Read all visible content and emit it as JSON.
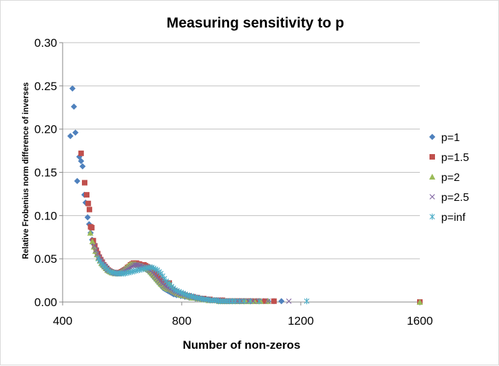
{
  "chart_data": {
    "type": "scatter",
    "title": "Measuring sensitivity to p",
    "xlabel": "Number of non-zeros",
    "ylabel": "Relative Frobenius norm difference of inverses",
    "xlim": [
      400,
      1600
    ],
    "ylim": [
      0,
      0.3
    ],
    "xticks": [
      400,
      800,
      1200,
      1600
    ],
    "xtick_labels": [
      "400",
      "800",
      "1200",
      "1600"
    ],
    "yticks": [
      0,
      0.05,
      0.1,
      0.15,
      0.2,
      0.25,
      0.3
    ],
    "ytick_labels": [
      "0.00",
      "0.05",
      "0.10",
      "0.15",
      "0.20",
      "0.25",
      "0.30"
    ],
    "grid": "horizontal",
    "legend_position": "right",
    "series": [
      {
        "name": "p=1",
        "marker": "diamond",
        "color": "#4f81bd",
        "x": [
          426,
          433,
          438,
          443,
          449,
          456,
          462,
          467,
          473,
          477,
          484,
          489,
          494,
          499,
          504,
          508,
          513,
          518,
          523,
          528,
          533,
          538,
          543,
          548,
          553,
          558,
          563,
          568,
          573,
          578,
          583,
          588,
          593,
          598,
          603,
          608,
          613,
          618,
          623,
          628,
          633,
          638,
          643,
          648,
          653,
          658,
          663,
          668,
          673,
          678,
          683,
          688,
          693,
          698,
          703,
          708,
          713,
          718,
          723,
          728,
          733,
          738,
          743,
          748,
          753,
          758,
          763,
          768,
          773,
          778,
          783,
          790,
          797,
          804,
          811,
          818,
          825,
          832,
          839,
          846,
          853,
          860,
          867,
          874,
          881,
          888,
          895,
          902,
          909,
          916,
          923,
          930,
          937,
          944,
          951,
          958,
          965,
          972,
          979,
          986,
          993,
          1000,
          1008,
          1016,
          1024,
          1032,
          1040,
          1050,
          1060,
          1075,
          1090,
          1110,
          1135,
          1600
        ],
        "y": [
          0.192,
          0.247,
          0.226,
          0.196,
          0.14,
          0.168,
          0.163,
          0.157,
          0.124,
          0.115,
          0.098,
          0.09,
          0.08,
          0.072,
          0.067,
          0.062,
          0.057,
          0.053,
          0.05,
          0.047,
          0.044,
          0.041,
          0.039,
          0.037,
          0.036,
          0.035,
          0.034,
          0.034,
          0.034,
          0.033,
          0.033,
          0.034,
          0.035,
          0.036,
          0.037,
          0.038,
          0.039,
          0.04,
          0.041,
          0.043,
          0.044,
          0.044,
          0.044,
          0.043,
          0.042,
          0.041,
          0.04,
          0.04,
          0.039,
          0.038,
          0.037,
          0.036,
          0.034,
          0.032,
          0.03,
          0.028,
          0.026,
          0.024,
          0.022,
          0.02,
          0.018,
          0.016,
          0.015,
          0.014,
          0.013,
          0.012,
          0.011,
          0.01,
          0.009,
          0.009,
          0.008,
          0.008,
          0.007,
          0.007,
          0.006,
          0.006,
          0.005,
          0.005,
          0.005,
          0.004,
          0.004,
          0.004,
          0.003,
          0.003,
          0.003,
          0.003,
          0.002,
          0.002,
          0.002,
          0.002,
          0.002,
          0.002,
          0.002,
          0.001,
          0.001,
          0.001,
          0.001,
          0.001,
          0.001,
          0.001,
          0.001,
          0.001,
          0.001,
          0.001,
          0.001,
          0.001,
          0.001,
          0.001,
          0.001,
          0.001,
          0.001,
          0.001,
          0.001,
          0
        ]
      },
      {
        "name": "p=1.5",
        "marker": "square",
        "color": "#c0504d",
        "x": [
          462,
          474,
          481,
          486,
          490,
          494,
          498,
          503,
          508,
          513,
          518,
          523,
          528,
          533,
          538,
          543,
          548,
          553,
          558,
          563,
          568,
          573,
          578,
          583,
          588,
          593,
          598,
          603,
          608,
          613,
          618,
          623,
          628,
          633,
          638,
          643,
          648,
          653,
          658,
          663,
          668,
          673,
          678,
          683,
          688,
          693,
          698,
          703,
          708,
          713,
          718,
          723,
          728,
          733,
          738,
          743,
          748,
          753,
          758,
          763,
          768,
          773,
          778,
          783,
          790,
          797,
          804,
          811,
          818,
          825,
          832,
          839,
          846,
          853,
          860,
          867,
          874,
          881,
          888,
          895,
          902,
          909,
          916,
          923,
          930,
          937,
          944,
          951,
          958,
          965,
          972,
          979,
          986,
          993,
          1000,
          1010,
          1020,
          1030,
          1045,
          1060,
          1080,
          1110,
          1600
        ],
        "y": [
          0.172,
          0.138,
          0.124,
          0.114,
          0.107,
          0.087,
          0.086,
          0.071,
          0.065,
          0.06,
          0.056,
          0.052,
          0.049,
          0.046,
          0.043,
          0.041,
          0.039,
          0.037,
          0.036,
          0.035,
          0.034,
          0.034,
          0.034,
          0.033,
          0.033,
          0.034,
          0.035,
          0.036,
          0.037,
          0.038,
          0.04,
          0.041,
          0.043,
          0.044,
          0.045,
          0.045,
          0.045,
          0.044,
          0.044,
          0.043,
          0.043,
          0.043,
          0.042,
          0.041,
          0.04,
          0.039,
          0.038,
          0.036,
          0.034,
          0.032,
          0.03,
          0.028,
          0.026,
          0.024,
          0.022,
          0.02,
          0.019,
          0.017,
          0.022,
          0.016,
          0.014,
          0.013,
          0.012,
          0.011,
          0.01,
          0.009,
          0.009,
          0.008,
          0.007,
          0.007,
          0.006,
          0.006,
          0.005,
          0.005,
          0.004,
          0.004,
          0.004,
          0.003,
          0.003,
          0.003,
          0.002,
          0.002,
          0.002,
          0.002,
          0.002,
          0.002,
          0.001,
          0.001,
          0.001,
          0.001,
          0.001,
          0.001,
          0.001,
          0.001,
          0.001,
          0.001,
          0.001,
          0.001,
          0.001,
          0.001,
          0.001,
          0.001,
          0
        ]
      },
      {
        "name": "p=2",
        "marker": "triangle",
        "color": "#9bbb59",
        "x": [
          493,
          500,
          505,
          510,
          515,
          520,
          525,
          530,
          535,
          540,
          545,
          550,
          555,
          560,
          565,
          570,
          575,
          580,
          585,
          590,
          595,
          600,
          605,
          610,
          615,
          620,
          625,
          630,
          635,
          640,
          645,
          650,
          655,
          660,
          665,
          670,
          675,
          680,
          685,
          690,
          695,
          700,
          705,
          710,
          715,
          720,
          725,
          730,
          735,
          740,
          745,
          750,
          755,
          760,
          765,
          770,
          775,
          780,
          785,
          792,
          799,
          806,
          813,
          820,
          827,
          834,
          841,
          848,
          855,
          862,
          869,
          876,
          883,
          890,
          897,
          904,
          911,
          918,
          925,
          932,
          939,
          946,
          953,
          960,
          967,
          974,
          981,
          988,
          995,
          1005,
          1015,
          1030,
          1045,
          1065,
          1090,
          1600
        ],
        "y": [
          0.08,
          0.07,
          0.064,
          0.059,
          0.055,
          0.051,
          0.048,
          0.045,
          0.043,
          0.041,
          0.039,
          0.037,
          0.036,
          0.035,
          0.034,
          0.034,
          0.033,
          0.033,
          0.033,
          0.034,
          0.035,
          0.036,
          0.037,
          0.039,
          0.04,
          0.042,
          0.043,
          0.044,
          0.044,
          0.044,
          0.044,
          0.043,
          0.043,
          0.042,
          0.042,
          0.041,
          0.04,
          0.039,
          0.038,
          0.037,
          0.035,
          0.033,
          0.031,
          0.029,
          0.027,
          0.025,
          0.023,
          0.021,
          0.02,
          0.018,
          0.017,
          0.016,
          0.015,
          0.021,
          0.014,
          0.013,
          0.012,
          0.011,
          0.01,
          0.009,
          0.008,
          0.008,
          0.007,
          0.007,
          0.006,
          0.005,
          0.005,
          0.005,
          0.004,
          0.004,
          0.003,
          0.003,
          0.003,
          0.002,
          0.002,
          0.002,
          0.002,
          0.002,
          0.001,
          0.001,
          0.001,
          0.001,
          0.001,
          0.001,
          0.001,
          0.001,
          0.001,
          0.001,
          0.001,
          0.001,
          0.001,
          0.001,
          0.001,
          0.001,
          0.001,
          0
        ]
      },
      {
        "name": "p=2.5",
        "marker": "x",
        "color": "#8064a2",
        "x": [
          507,
          512,
          517,
          522,
          527,
          532,
          537,
          542,
          547,
          552,
          557,
          562,
          567,
          572,
          577,
          582,
          587,
          592,
          597,
          602,
          607,
          612,
          617,
          622,
          627,
          632,
          637,
          642,
          647,
          652,
          657,
          662,
          667,
          672,
          677,
          682,
          687,
          692,
          697,
          702,
          707,
          712,
          717,
          722,
          727,
          732,
          737,
          742,
          747,
          752,
          757,
          762,
          767,
          772,
          777,
          782,
          789,
          796,
          803,
          810,
          817,
          824,
          831,
          838,
          845,
          852,
          859,
          866,
          873,
          880,
          887,
          894,
          901,
          908,
          915,
          922,
          929,
          936,
          943,
          950,
          957,
          964,
          971,
          978,
          985,
          992,
          1000,
          1010,
          1025,
          1040,
          1060,
          1090,
          1160
        ],
        "y": [
          0.065,
          0.06,
          0.056,
          0.052,
          0.049,
          0.046,
          0.043,
          0.041,
          0.039,
          0.037,
          0.036,
          0.035,
          0.034,
          0.034,
          0.033,
          0.033,
          0.033,
          0.034,
          0.034,
          0.035,
          0.036,
          0.037,
          0.038,
          0.039,
          0.04,
          0.041,
          0.042,
          0.043,
          0.043,
          0.043,
          0.042,
          0.042,
          0.041,
          0.041,
          0.04,
          0.039,
          0.038,
          0.037,
          0.036,
          0.034,
          0.032,
          0.03,
          0.028,
          0.026,
          0.024,
          0.022,
          0.021,
          0.019,
          0.018,
          0.017,
          0.016,
          0.015,
          0.014,
          0.013,
          0.012,
          0.011,
          0.01,
          0.009,
          0.009,
          0.008,
          0.007,
          0.007,
          0.006,
          0.006,
          0.005,
          0.005,
          0.004,
          0.004,
          0.003,
          0.003,
          0.003,
          0.002,
          0.002,
          0.002,
          0.002,
          0.002,
          0.001,
          0.001,
          0.001,
          0.001,
          0.001,
          0.001,
          0.001,
          0.001,
          0.001,
          0.001,
          0.001,
          0.001,
          0.001,
          0.001,
          0.001,
          0.001,
          0.001
        ]
      },
      {
        "name": "p=inf",
        "marker": "star",
        "color": "#4bacc6",
        "x": [
          520,
          526,
          532,
          538,
          544,
          550,
          556,
          562,
          568,
          574,
          580,
          586,
          592,
          598,
          604,
          610,
          616,
          622,
          628,
          634,
          640,
          646,
          652,
          658,
          664,
          670,
          676,
          682,
          688,
          694,
          700,
          706,
          712,
          718,
          724,
          730,
          736,
          742,
          748,
          754,
          760,
          766,
          772,
          778,
          784,
          791,
          798,
          805,
          812,
          819,
          826,
          833,
          840,
          847,
          854,
          861,
          868,
          875,
          882,
          889,
          896,
          903,
          910,
          917,
          924,
          931,
          938,
          945,
          952,
          960,
          970,
          980,
          995,
          1010,
          1030,
          1060,
          1220
        ],
        "y": [
          0.05,
          0.047,
          0.044,
          0.042,
          0.04,
          0.038,
          0.036,
          0.035,
          0.034,
          0.034,
          0.033,
          0.033,
          0.033,
          0.033,
          0.033,
          0.033,
          0.034,
          0.034,
          0.035,
          0.035,
          0.036,
          0.036,
          0.037,
          0.037,
          0.038,
          0.038,
          0.039,
          0.039,
          0.04,
          0.04,
          0.04,
          0.039,
          0.038,
          0.037,
          0.035,
          0.033,
          0.03,
          0.027,
          0.024,
          0.022,
          0.02,
          0.018,
          0.016,
          0.014,
          0.013,
          0.012,
          0.011,
          0.01,
          0.009,
          0.008,
          0.007,
          0.007,
          0.006,
          0.005,
          0.005,
          0.004,
          0.004,
          0.003,
          0.003,
          0.003,
          0.002,
          0.002,
          0.002,
          0.002,
          0.001,
          0.001,
          0.001,
          0.001,
          0.001,
          0.001,
          0.001,
          0.001,
          0.001,
          0.001,
          0.001,
          0.001,
          0.001
        ]
      }
    ]
  }
}
